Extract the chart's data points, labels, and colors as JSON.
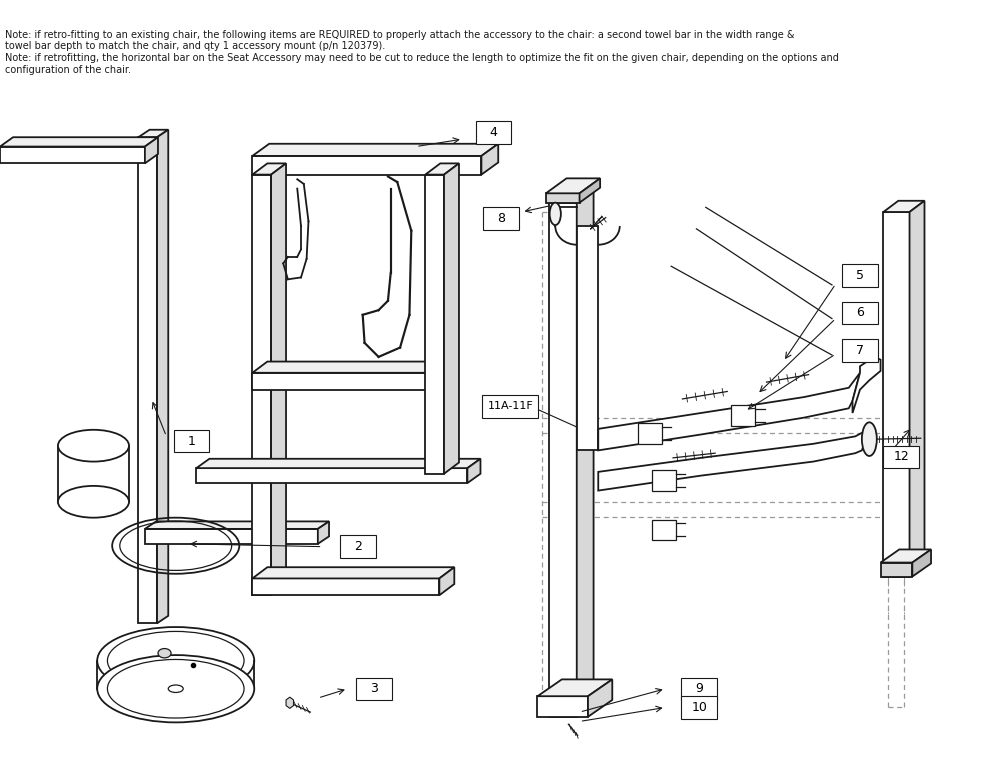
{
  "bg_color": "#ffffff",
  "line_color": "#1a1a1a",
  "dark_gray": "#555555",
  "mid_gray": "#888888",
  "light_gray": "#bbbbbb",
  "face_light": "#f0f0f0",
  "face_mid": "#d8d8d8",
  "face_dark": "#c0c0c0",
  "dashed_color": "#999999",
  "note_line1": "Note: if retro-fitting to an existing chair, the following items are REQUIRED to properly attach the accessory to the chair: a second towel bar in the width range &",
  "note_line2": "towel bar depth to match the chair, and qty 1 accessory mount (p/n 120379).",
  "note_line3": "Note: if retrofitting, the horizontal bar on the Seat Accessory may need to be cut to reduce the length to optimize the fit on the given chair, depending on the options and",
  "note_line4": "configuration of the chair.",
  "figw": 10.0,
  "figh": 7.68
}
